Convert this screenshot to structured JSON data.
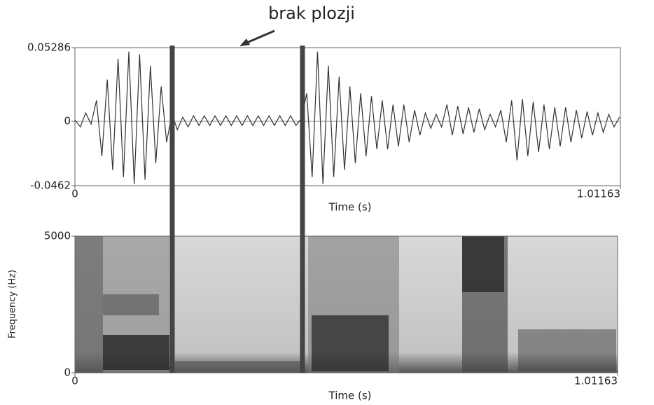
{
  "chart_data": [
    {
      "type": "line",
      "annotation": "brak plozji",
      "xlabel": "Time (s)",
      "xlim": [
        0,
        1.01163
      ],
      "xticks": [
        0,
        1.01163
      ],
      "ylim": [
        -0.0462,
        0.05286
      ],
      "yticks": [
        -0.0462,
        0,
        0.05286
      ],
      "markers_x": [
        0.1805,
        0.422
      ],
      "color": "#333333",
      "x": [
        0,
        0.01,
        0.02,
        0.03,
        0.04,
        0.05,
        0.06,
        0.07,
        0.08,
        0.09,
        0.1,
        0.11,
        0.12,
        0.13,
        0.14,
        0.15,
        0.16,
        0.17,
        0.18,
        0.19,
        0.2,
        0.21,
        0.22,
        0.23,
        0.24,
        0.25,
        0.26,
        0.27,
        0.28,
        0.29,
        0.3,
        0.31,
        0.32,
        0.33,
        0.34,
        0.35,
        0.36,
        0.37,
        0.38,
        0.39,
        0.4,
        0.41,
        0.42,
        0.43,
        0.44,
        0.45,
        0.46,
        0.47,
        0.48,
        0.49,
        0.5,
        0.51,
        0.52,
        0.53,
        0.54,
        0.55,
        0.56,
        0.57,
        0.58,
        0.59,
        0.6,
        0.61,
        0.62,
        0.63,
        0.64,
        0.65,
        0.66,
        0.67,
        0.68,
        0.69,
        0.7,
        0.71,
        0.72,
        0.73,
        0.74,
        0.75,
        0.76,
        0.77,
        0.78,
        0.79,
        0.8,
        0.81,
        0.82,
        0.83,
        0.84,
        0.85,
        0.86,
        0.87,
        0.88,
        0.89,
        0.9,
        0.91,
        0.92,
        0.93,
        0.94,
        0.95,
        0.96,
        0.97,
        0.98,
        0.99,
        1.0,
        1.01
      ],
      "values": [
        0.001,
        -0.004,
        0.006,
        -0.002,
        0.015,
        -0.025,
        0.03,
        -0.035,
        0.045,
        -0.04,
        0.05,
        -0.045,
        0.048,
        -0.042,
        0.04,
        -0.03,
        0.025,
        -0.015,
        0.005,
        -0.006,
        0.003,
        -0.004,
        0.004,
        -0.003,
        0.004,
        -0.003,
        0.004,
        -0.003,
        0.004,
        -0.003,
        0.004,
        -0.003,
        0.004,
        -0.003,
        0.004,
        -0.003,
        0.004,
        -0.003,
        0.004,
        -0.003,
        0.004,
        -0.003,
        0.002,
        0.02,
        -0.04,
        0.05,
        -0.045,
        0.04,
        -0.04,
        0.032,
        -0.035,
        0.025,
        -0.03,
        0.02,
        -0.025,
        0.018,
        -0.02,
        0.015,
        -0.02,
        0.012,
        -0.018,
        0.012,
        -0.015,
        0.008,
        -0.01,
        0.006,
        -0.005,
        0.005,
        -0.004,
        0.012,
        -0.01,
        0.011,
        -0.009,
        0.01,
        -0.008,
        0.009,
        -0.006,
        0.005,
        -0.004,
        0.008,
        -0.015,
        0.015,
        -0.028,
        0.016,
        -0.025,
        0.014,
        -0.022,
        0.012,
        -0.02,
        0.01,
        -0.018,
        0.01,
        -0.015,
        0.008,
        -0.012,
        0.007,
        -0.01,
        0.006,
        -0.008,
        0.005,
        -0.004,
        0.003
      ]
    },
    {
      "type": "spectrogram",
      "xlabel": "Time (s)",
      "ylabel": "Frequency (Hz)",
      "xlim": [
        0,
        1.01163
      ],
      "xticks": [
        0,
        1.01163
      ],
      "ylim": [
        0,
        5000
      ],
      "yticks": [
        0,
        5000
      ]
    }
  ]
}
